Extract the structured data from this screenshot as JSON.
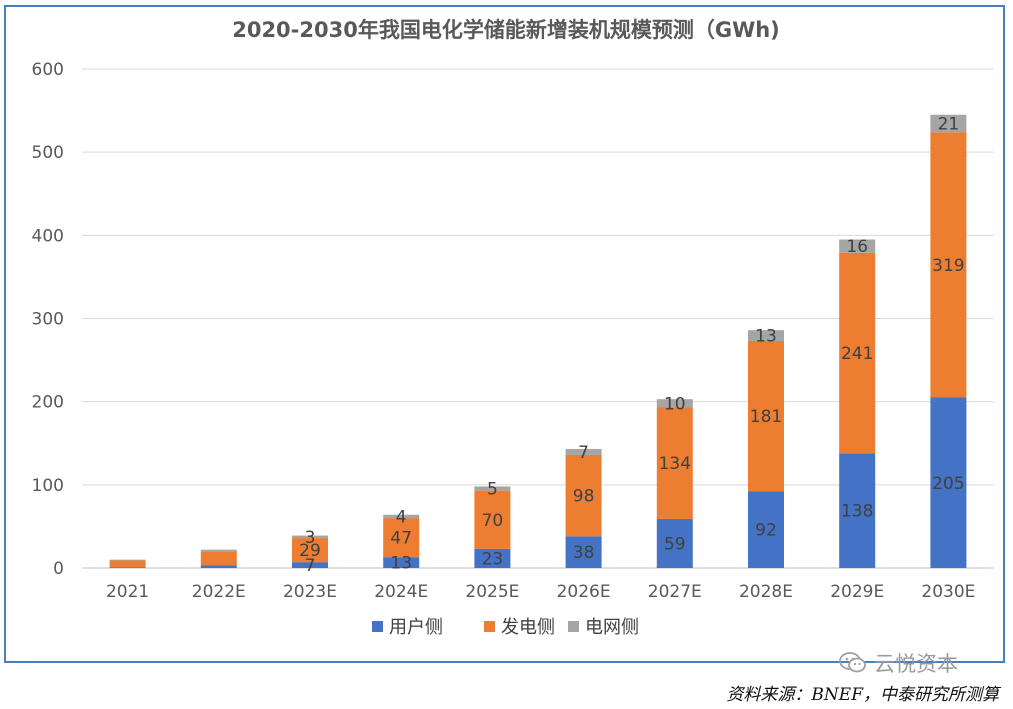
{
  "chart_data": {
    "type": "bar",
    "stacked": true,
    "title": "2020-2030年我国电化学储能新增装机规模预测（GWh)",
    "categories": [
      "2021",
      "2022E",
      "2023E",
      "2024E",
      "2025E",
      "2026E",
      "2027E",
      "2028E",
      "2029E",
      "2030E"
    ],
    "series": [
      {
        "name": "用户侧",
        "color": "#4472c4",
        "values": [
          1,
          3,
          7,
          13,
          23,
          38,
          59,
          92,
          138,
          205
        ],
        "labels": [
          "",
          "",
          "7",
          "13",
          "23",
          "38",
          "59",
          "92",
          "138",
          "205"
        ]
      },
      {
        "name": "发电侧",
        "color": "#ed7d31",
        "values": [
          8,
          17,
          29,
          47,
          70,
          98,
          134,
          181,
          241,
          319
        ],
        "labels": [
          "",
          "",
          "29",
          "47",
          "70",
          "98",
          "134",
          "181",
          "241",
          "319"
        ]
      },
      {
        "name": "电网侧",
        "color": "#a5a5a5",
        "values": [
          1,
          2,
          3,
          4,
          5,
          7,
          10,
          13,
          16,
          21
        ],
        "labels": [
          "",
          "",
          "3",
          "4",
          "5",
          "7",
          "10",
          "13",
          "16",
          "21"
        ]
      }
    ],
    "ylim": [
      0,
      600
    ],
    "yticks": [
      0,
      100,
      200,
      300,
      400,
      500,
      600
    ],
    "grid": true,
    "legend": "bottom"
  },
  "source_note": "资料来源：BNEF，中泰研究所测算",
  "watermark": {
    "text": "云悦资本",
    "icon": "wechat-icon"
  }
}
